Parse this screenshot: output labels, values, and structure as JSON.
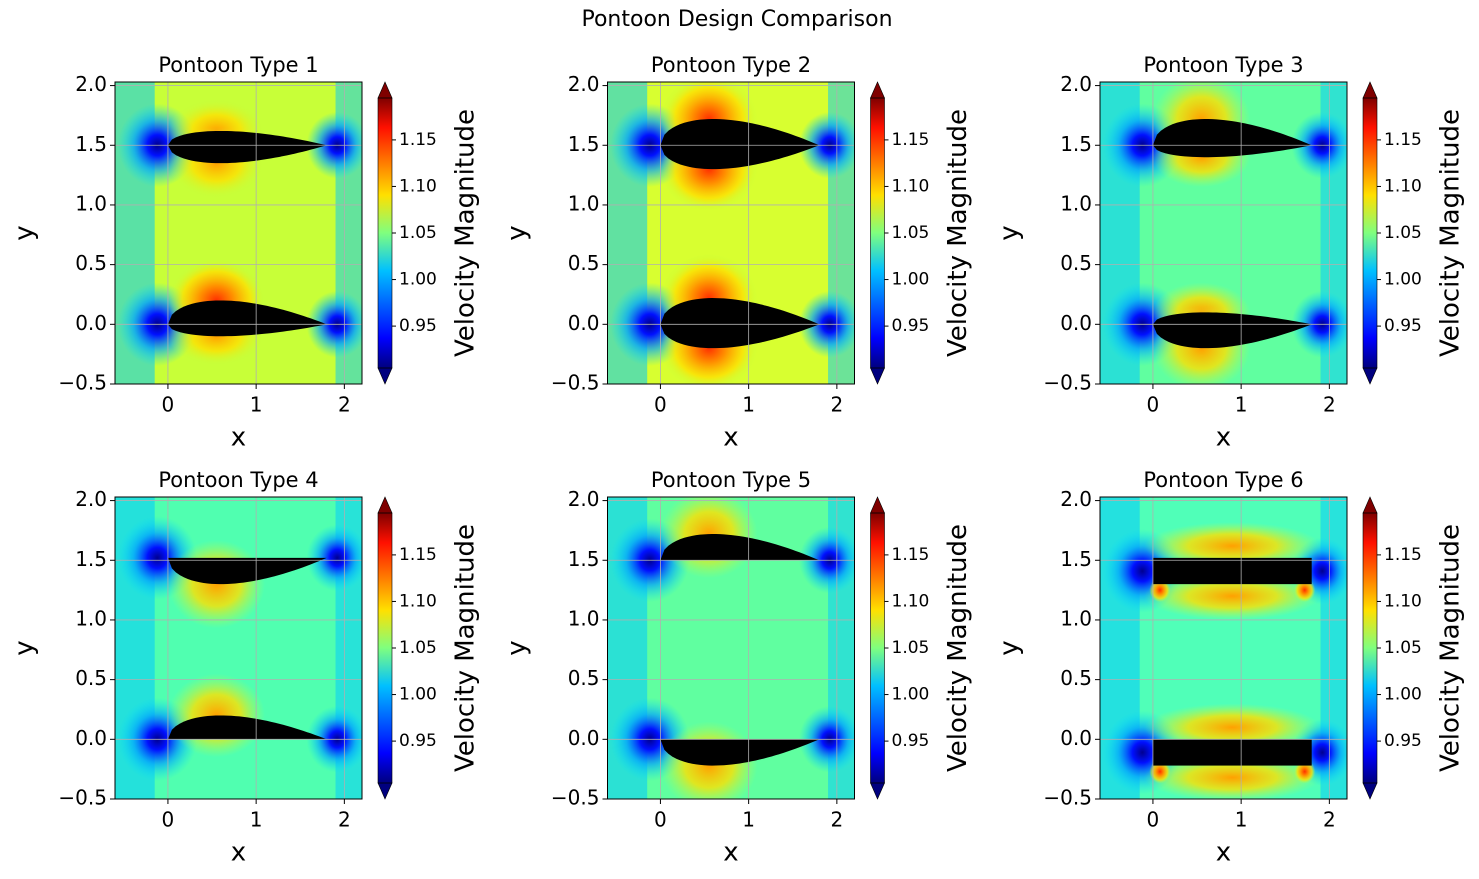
{
  "title": "Pontoon Design Comparison",
  "chart_data": [
    {
      "type": "contour",
      "title": "Pontoon Type 1",
      "xlabel": "x",
      "ylabel": "y",
      "xlim": [
        -0.6,
        2.2
      ],
      "ylim": [
        -0.5,
        2.03
      ],
      "xticks": [
        0,
        1,
        2
      ],
      "yticks": [
        {
          "value": -0.5,
          "label": "−0.5"
        },
        {
          "value": 0,
          "label": "0.0"
        },
        0.5,
        {
          "value": 1,
          "label": "1.0"
        },
        1.5,
        {
          "value": 2,
          "label": "2.0"
        }
      ],
      "grid": true,
      "colorbar": {
        "label": "Velocity Magnitude",
        "lim": [
          0.905,
          1.195
        ],
        "ticks": [
          0.95,
          {
            "value": 1,
            "label": "1.00"
          },
          1.05,
          {
            "value": 1.1,
            "label": "1.10"
          },
          1.15
        ]
      }
    },
    {
      "type": "contour",
      "title": "Pontoon Type 2",
      "xlabel": "x",
      "ylabel": "y",
      "xlim": [
        -0.6,
        2.2
      ],
      "ylim": [
        -0.5,
        2.03
      ],
      "xticks": [
        0,
        1,
        2
      ],
      "yticks": [
        {
          "value": -0.5,
          "label": "−0.5"
        },
        {
          "value": 0,
          "label": "0.0"
        },
        0.5,
        {
          "value": 1,
          "label": "1.0"
        },
        1.5,
        {
          "value": 2,
          "label": "2.0"
        }
      ],
      "grid": true,
      "colorbar": {
        "label": "Velocity Magnitude",
        "lim": [
          0.905,
          1.195
        ],
        "ticks": [
          0.95,
          {
            "value": 1,
            "label": "1.00"
          },
          1.05,
          {
            "value": 1.1,
            "label": "1.10"
          },
          1.15
        ]
      }
    },
    {
      "type": "contour",
      "title": "Pontoon Type 3",
      "xlabel": "x",
      "ylabel": "y",
      "xlim": [
        -0.6,
        2.2
      ],
      "ylim": [
        -0.5,
        2.03
      ],
      "xticks": [
        0,
        1,
        2
      ],
      "yticks": [
        {
          "value": -0.5,
          "label": "−0.5"
        },
        {
          "value": 0,
          "label": "0.0"
        },
        0.5,
        {
          "value": 1,
          "label": "1.0"
        },
        1.5,
        {
          "value": 2,
          "label": "2.0"
        }
      ],
      "grid": true,
      "colorbar": {
        "label": "Velocity Magnitude",
        "lim": [
          0.905,
          1.195
        ],
        "ticks": [
          0.95,
          {
            "value": 1,
            "label": "1.00"
          },
          1.05,
          {
            "value": 1.1,
            "label": "1.10"
          },
          1.15
        ]
      }
    },
    {
      "type": "contour",
      "title": "Pontoon Type 4",
      "xlabel": "x",
      "ylabel": "y",
      "xlim": [
        -0.6,
        2.2
      ],
      "ylim": [
        -0.5,
        2.03
      ],
      "xticks": [
        0,
        1,
        2
      ],
      "yticks": [
        {
          "value": -0.5,
          "label": "−0.5"
        },
        {
          "value": 0,
          "label": "0.0"
        },
        0.5,
        {
          "value": 1,
          "label": "1.0"
        },
        1.5,
        {
          "value": 2,
          "label": "2.0"
        }
      ],
      "grid": true,
      "colorbar": {
        "label": "Velocity Magnitude",
        "lim": [
          0.905,
          1.195
        ],
        "ticks": [
          0.95,
          {
            "value": 1,
            "label": "1.00"
          },
          1.05,
          {
            "value": 1.1,
            "label": "1.10"
          },
          1.15
        ]
      }
    },
    {
      "type": "contour",
      "title": "Pontoon Type 5",
      "xlabel": "x",
      "ylabel": "y",
      "xlim": [
        -0.6,
        2.2
      ],
      "ylim": [
        -0.5,
        2.03
      ],
      "xticks": [
        0,
        1,
        2
      ],
      "yticks": [
        {
          "value": -0.5,
          "label": "−0.5"
        },
        {
          "value": 0,
          "label": "0.0"
        },
        0.5,
        {
          "value": 1,
          "label": "1.0"
        },
        1.5,
        {
          "value": 2,
          "label": "2.0"
        }
      ],
      "grid": true,
      "colorbar": {
        "label": "Velocity Magnitude",
        "lim": [
          0.905,
          1.195
        ],
        "ticks": [
          0.95,
          {
            "value": 1,
            "label": "1.00"
          },
          1.05,
          {
            "value": 1.1,
            "label": "1.10"
          },
          1.15
        ]
      }
    },
    {
      "type": "contour",
      "title": "Pontoon Type 6",
      "xlabel": "x",
      "ylabel": "y",
      "xlim": [
        -0.6,
        2.2
      ],
      "ylim": [
        -0.5,
        2.03
      ],
      "xticks": [
        0,
        1,
        2
      ],
      "yticks": [
        {
          "value": -0.5,
          "label": "−0.5"
        },
        {
          "value": 0,
          "label": "0.0"
        },
        0.5,
        {
          "value": 1,
          "label": "1.0"
        },
        1.5,
        {
          "value": 2,
          "label": "2.0"
        }
      ],
      "grid": true,
      "colorbar": {
        "label": "Velocity Magnitude",
        "lim": [
          0.905,
          1.195
        ],
        "ticks": [
          0.95,
          {
            "value": 1,
            "label": "1.00"
          },
          1.05,
          {
            "value": 1.1,
            "label": "1.10"
          },
          1.15
        ]
      }
    }
  ]
}
